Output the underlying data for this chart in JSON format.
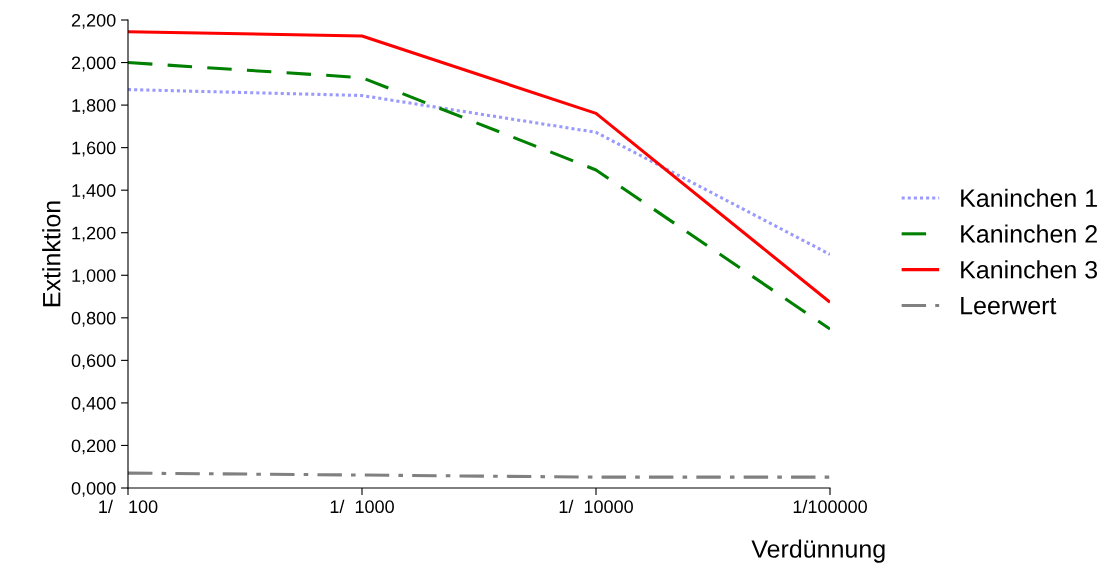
{
  "chart_data": {
    "type": "line",
    "xlabel": "Verdünnung",
    "ylabel": "Extinktion",
    "categories": [
      "1/   100",
      "1/  1000",
      "1/  10000",
      "1/100000"
    ],
    "series": [
      {
        "name": "Kaninchen 1",
        "color": "#9999ff",
        "line_style": "dotted",
        "values": [
          1.873,
          1.845,
          1.672,
          1.098
        ]
      },
      {
        "name": "Kaninchen 2",
        "color": "#008000",
        "line_style": "dashed",
        "values": [
          2.0,
          1.929,
          1.495,
          0.747
        ]
      },
      {
        "name": "Kaninchen 3",
        "color": "#ff0000",
        "line_style": "solid",
        "values": [
          2.145,
          2.125,
          1.761,
          0.873
        ]
      },
      {
        "name": "Leerwert",
        "color": "#808080",
        "line_style": "dashdot",
        "values": [
          0.07,
          0.061,
          0.051,
          0.051
        ]
      }
    ],
    "ylim": [
      0,
      2.2
    ],
    "yticks": [
      {
        "value": 0,
        "label": "0,000"
      },
      {
        "value": 0.2,
        "label": "0,200"
      },
      {
        "value": 0.4,
        "label": "0,400"
      },
      {
        "value": 0.6,
        "label": "0,600"
      },
      {
        "value": 0.8,
        "label": "0,800"
      },
      {
        "value": 1.0,
        "label": "1,000"
      },
      {
        "value": 1.2,
        "label": "1,200"
      },
      {
        "value": 1.4,
        "label": "1,400"
      },
      {
        "value": 1.6,
        "label": "1,600"
      },
      {
        "value": 1.8,
        "label": "1,800"
      },
      {
        "value": 2.0,
        "label": "2,000"
      },
      {
        "value": 2.2,
        "label": "2,200"
      }
    ],
    "grid": false,
    "legend": "right",
    "marker": "none"
  }
}
